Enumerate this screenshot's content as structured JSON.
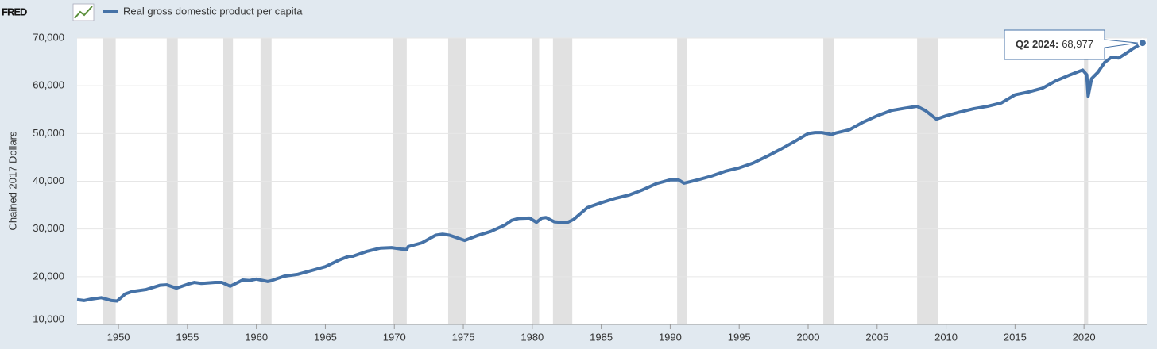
{
  "chart_data": {
    "type": "line",
    "logo": "FRED",
    "y_label": "Chained 2017 Dollars",
    "xlim": [
      1947,
      2024.6
    ],
    "xticks": [
      1950,
      1955,
      1960,
      1965,
      1970,
      1975,
      1980,
      1985,
      1990,
      1995,
      2000,
      2005,
      2010,
      2015,
      2020
    ],
    "ylim": [
      10000,
      70000
    ],
    "yticks": [
      {
        "value": 10000,
        "label": "10,000"
      },
      {
        "value": 20000,
        "label": "20,000"
      },
      {
        "value": 30000,
        "label": "30,000"
      },
      {
        "value": 40000,
        "label": "40,000"
      },
      {
        "value": 50000,
        "label": "50,000"
      },
      {
        "value": 60000,
        "label": "60,000"
      },
      {
        "value": 70000,
        "label": "70,000"
      }
    ],
    "grid": true,
    "recessions": [
      [
        1948.9,
        1949.8
      ],
      [
        1953.5,
        1954.3
      ],
      [
        1957.6,
        1958.3
      ],
      [
        1960.3,
        1961.1
      ],
      [
        1969.9,
        1970.9
      ],
      [
        1973.9,
        1975.2
      ],
      [
        1980.0,
        1980.5
      ],
      [
        1981.5,
        1982.9
      ],
      [
        1990.5,
        1991.2
      ],
      [
        2001.1,
        2001.9
      ],
      [
        2007.9,
        2009.4
      ],
      [
        2020.0,
        2020.3
      ]
    ],
    "recession_color": "#e1e1e1",
    "x": [
      1947,
      1947.5,
      1948,
      1948.75,
      1949.5,
      1949.9,
      1950.5,
      1951,
      1952,
      1953,
      1953.5,
      1954.2,
      1955,
      1955.5,
      1956,
      1957,
      1957.5,
      1958.1,
      1959,
      1959.5,
      1960,
      1960.8,
      1961,
      1962,
      1963,
      1964,
      1965,
      1966,
      1966.7,
      1967,
      1968,
      1969,
      1969.8,
      1970.5,
      1970.9,
      1971,
      1972,
      1973,
      1973.5,
      1974,
      1975.1,
      1976,
      1977,
      1978,
      1978.5,
      1979,
      1979.8,
      1980.3,
      1980.7,
      1981,
      1981.6,
      1982.5,
      1983,
      1984,
      1985,
      1986,
      1987,
      1988,
      1989,
      1990,
      1990.6,
      1991,
      1992,
      1993,
      1994,
      1995,
      1996,
      1997,
      1998,
      1999,
      2000,
      2000.5,
      2001,
      2001.7,
      2002,
      2003,
      2004,
      2005,
      2006,
      2007,
      2007.9,
      2008.5,
      2009.3,
      2010,
      2011,
      2012,
      2013,
      2014,
      2015,
      2016,
      2017,
      2018,
      2019,
      2019.9,
      2020.2,
      2020.3,
      2020.55,
      2021,
      2021.5,
      2022,
      2022.5,
      2023,
      2023.5,
      2024.25
    ],
    "series": [
      {
        "name": "Real gross domestic product per capita",
        "color": "#4572a7",
        "values": [
          15200,
          15000,
          15300,
          15600,
          15000,
          14900,
          16400,
          16900,
          17300,
          18200,
          18300,
          17600,
          18400,
          18800,
          18600,
          18800,
          18800,
          18000,
          19300,
          19200,
          19500,
          19000,
          19100,
          20100,
          20500,
          21300,
          22100,
          23500,
          24300,
          24300,
          25300,
          26000,
          26100,
          25800,
          25700,
          26300,
          27100,
          28700,
          28900,
          28700,
          27600,
          28600,
          29500,
          30800,
          31800,
          32200,
          32300,
          31400,
          32300,
          32400,
          31500,
          31300,
          32000,
          34500,
          35500,
          36400,
          37100,
          38200,
          39500,
          40300,
          40300,
          39600,
          40300,
          41100,
          42100,
          42800,
          43800,
          45200,
          46700,
          48300,
          50000,
          50200,
          50200,
          49800,
          50100,
          50800,
          52400,
          53700,
          54800,
          55300,
          55700,
          54800,
          53000,
          53700,
          54500,
          55200,
          55700,
          56400,
          58100,
          58700,
          59500,
          61100,
          62300,
          63300,
          62300,
          57800,
          61500,
          62800,
          64900,
          66000,
          65800,
          66700,
          67700,
          68977
        ]
      }
    ],
    "tooltip": {
      "title": "Q2 2024:",
      "x": 2024.25,
      "value": 68977,
      "label": "68,977"
    }
  }
}
